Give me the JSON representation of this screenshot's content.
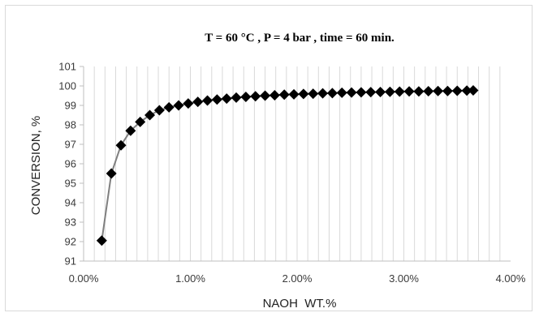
{
  "chart_data": {
    "type": "line",
    "title": "T = 60  °C , P = 4 bar , time = 60 min.",
    "xlabel": "NAOH  WT.%",
    "ylabel": "CONVERSION, %",
    "xlim": [
      0,
      0.04
    ],
    "ylim": [
      91,
      101
    ],
    "x_ticks": [
      0,
      0.01,
      0.02,
      0.03,
      0.04
    ],
    "x_tick_labels": [
      "0.00%",
      "1.00%",
      "2.00%",
      "3.00%",
      "4.00%"
    ],
    "y_ticks": [
      91,
      92,
      93,
      94,
      95,
      96,
      97,
      98,
      99,
      100,
      101
    ],
    "y_tick_labels": [
      "91",
      "92",
      "93",
      "94",
      "95",
      "96",
      "97",
      "98",
      "99",
      "100",
      "101"
    ],
    "grid": "vertical",
    "legend": "none",
    "marker": "diamond",
    "marker_color": "#000000",
    "line_color": "#7f7f7f",
    "series": [
      {
        "x": [
          0.0017,
          0.0026,
          0.0035,
          0.0044,
          0.0053,
          0.0062,
          0.0071,
          0.008,
          0.0089,
          0.0098,
          0.0107,
          0.0116,
          0.0125,
          0.0134,
          0.0143,
          0.0152,
          0.0161,
          0.017,
          0.0179,
          0.0188,
          0.0197,
          0.0206,
          0.0215,
          0.0224,
          0.0233,
          0.0242,
          0.0251,
          0.026,
          0.0269,
          0.0278,
          0.0287,
          0.0296,
          0.0305,
          0.0314,
          0.0323,
          0.0332,
          0.0341,
          0.035,
          0.0359,
          0.0365
        ],
        "values": [
          92.05,
          95.5,
          96.95,
          97.7,
          98.15,
          98.5,
          98.75,
          98.9,
          99.0,
          99.1,
          99.18,
          99.25,
          99.3,
          99.35,
          99.4,
          99.44,
          99.47,
          99.5,
          99.52,
          99.55,
          99.57,
          99.59,
          99.6,
          99.62,
          99.63,
          99.65,
          99.66,
          99.67,
          99.68,
          99.69,
          99.7,
          99.71,
          99.72,
          99.72,
          99.73,
          99.74,
          99.74,
          99.75,
          99.76,
          99.77
        ]
      }
    ]
  }
}
